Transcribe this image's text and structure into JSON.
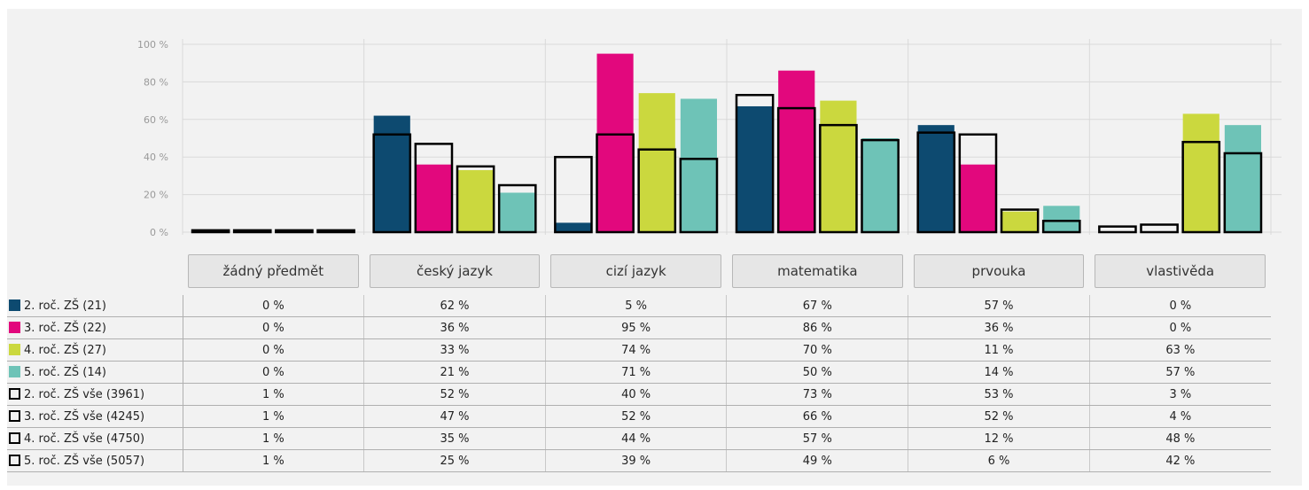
{
  "chart_data": {
    "type": "bar",
    "categories": [
      "žádný předmět",
      "český jazyk",
      "cizí jazyk",
      "matematika",
      "prvouka",
      "vlastivěda"
    ],
    "y_ticks": [
      "0 %",
      "20 %",
      "40 %",
      "60 %",
      "80 %",
      "100 %"
    ],
    "ylim": [
      0,
      100
    ],
    "grid": true,
    "legend": "table-below",
    "series": [
      {
        "name": "2. roč. ZŠ (21)",
        "color": "#0d4a70",
        "style": "filled",
        "values": [
          0,
          62,
          5,
          67,
          57,
          0
        ],
        "labels": [
          "0 %",
          "62 %",
          "5 %",
          "67 %",
          "57 %",
          "0 %"
        ]
      },
      {
        "name": "3. roč. ZŠ (22)",
        "color": "#e2087d",
        "style": "filled",
        "values": [
          0,
          36,
          95,
          86,
          36,
          0
        ],
        "labels": [
          "0 %",
          "36 %",
          "95 %",
          "86 %",
          "36 %",
          "0 %"
        ]
      },
      {
        "name": "4. roč. ZŠ (27)",
        "color": "#cbd83e",
        "style": "filled",
        "values": [
          0,
          33,
          74,
          70,
          11,
          63
        ],
        "labels": [
          "0 %",
          "33 %",
          "74 %",
          "70 %",
          "11 %",
          "63 %"
        ]
      },
      {
        "name": "5. roč. ZŠ (14)",
        "color": "#6ec3b7",
        "style": "filled",
        "values": [
          0,
          21,
          71,
          50,
          14,
          57
        ],
        "labels": [
          "0 %",
          "21 %",
          "71 %",
          "50 %",
          "14 %",
          "57 %"
        ]
      },
      {
        "name": "2. roč. ZŠ vše (3961)",
        "color": "#000000",
        "style": "outline",
        "values": [
          1,
          52,
          40,
          73,
          53,
          3
        ],
        "labels": [
          "1 %",
          "52 %",
          "40 %",
          "73 %",
          "53 %",
          "3 %"
        ]
      },
      {
        "name": "3. roč. ZŠ vše (4245)",
        "color": "#000000",
        "style": "outline",
        "values": [
          1,
          47,
          52,
          66,
          52,
          4
        ],
        "labels": [
          "1 %",
          "47 %",
          "52 %",
          "66 %",
          "52 %",
          "4 %"
        ]
      },
      {
        "name": "4. roč. ZŠ vše (4750)",
        "color": "#000000",
        "style": "outline",
        "values": [
          1,
          35,
          44,
          57,
          12,
          48
        ],
        "labels": [
          "1 %",
          "35 %",
          "44 %",
          "57 %",
          "12 %",
          "48 %"
        ]
      },
      {
        "name": "5. roč. ZŠ vše (5057)",
        "color": "#000000",
        "style": "outline",
        "values": [
          1,
          25,
          39,
          49,
          6,
          42
        ],
        "labels": [
          "1 %",
          "25 %",
          "39 %",
          "49 %",
          "6 %",
          "42 %"
        ]
      }
    ]
  }
}
